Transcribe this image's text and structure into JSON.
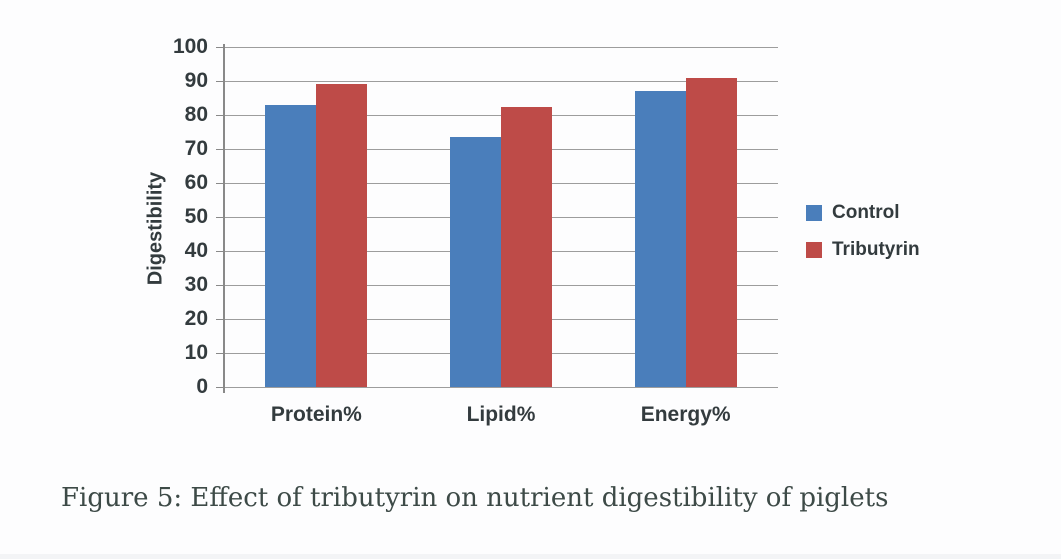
{
  "caption": {
    "text": "Figure 5: Effect of tributyrin on nutrient digestibility of piglets"
  },
  "chart_data": {
    "type": "bar",
    "title": "",
    "categories": [
      "Protein%",
      "Lipid%",
      "Energy%"
    ],
    "series": [
      {
        "name": "Control",
        "color": "#4a7ebb",
        "values": [
          83,
          73.5,
          87
        ]
      },
      {
        "name": "Tributyrin",
        "color": "#be4b48",
        "values": [
          89,
          82.5,
          91
        ]
      }
    ],
    "xlabel": "",
    "ylabel": "Digestibility",
    "ylim": [
      0,
      100
    ],
    "yticks": [
      0,
      10,
      20,
      30,
      40,
      50,
      60,
      70,
      80,
      90,
      100
    ],
    "grid": true,
    "legend_position": "right-middle"
  },
  "colors": {
    "gridline": "#9d9d9d",
    "axis": "#898989",
    "label_text": "#333b3e",
    "caption_text": "#3d4a47",
    "background": "#fdfdfe"
  }
}
